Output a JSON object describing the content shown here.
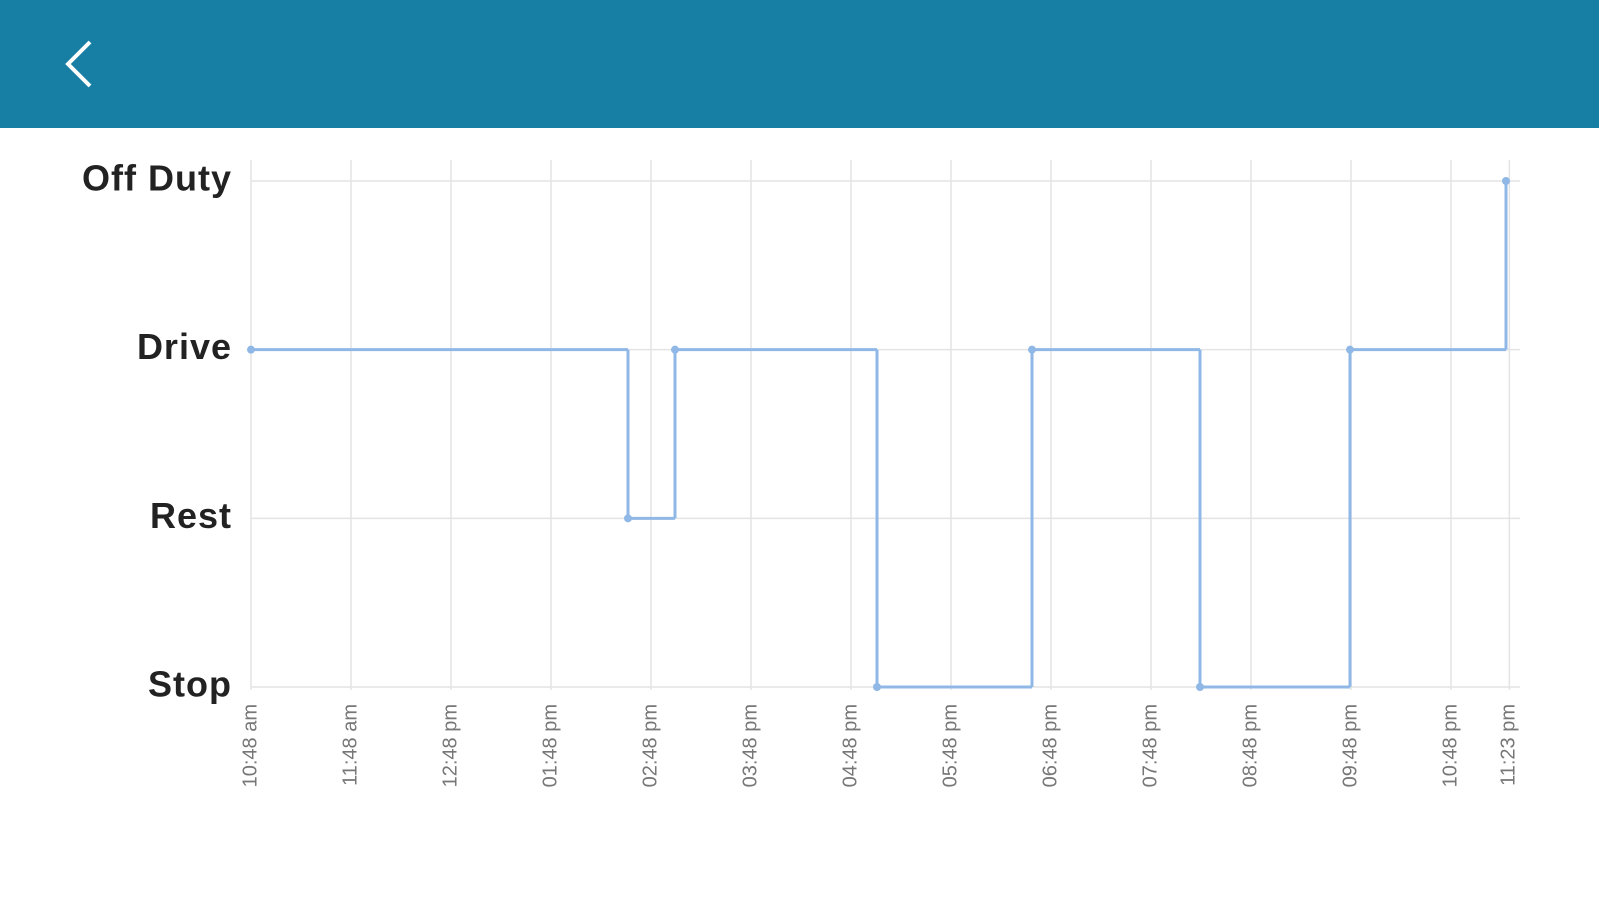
{
  "chart_data": {
    "type": "step",
    "x": [
      10.8,
      14.57,
      15.04,
      17.06,
      18.61,
      20.29,
      21.79,
      23.35
    ],
    "values": [
      2,
      1,
      2,
      0,
      2,
      0,
      2,
      3
    ],
    "color": "#8fb8e6",
    "xlim": [
      10.8,
      23.49
    ],
    "xticks": [
      {
        "value": 10.8,
        "label": "10:48 am"
      },
      {
        "value": 11.8,
        "label": "11:48 am"
      },
      {
        "value": 12.8,
        "label": "12:48 pm"
      },
      {
        "value": 13.8,
        "label": "01:48 pm"
      },
      {
        "value": 14.8,
        "label": "02:48 pm"
      },
      {
        "value": 15.8,
        "label": "03:48 pm"
      },
      {
        "value": 16.8,
        "label": "04:48 pm"
      },
      {
        "value": 17.8,
        "label": "05:48 pm"
      },
      {
        "value": 18.8,
        "label": "06:48 pm"
      },
      {
        "value": 19.8,
        "label": "07:48 pm"
      },
      {
        "value": 20.8,
        "label": "08:48 pm"
      },
      {
        "value": 21.8,
        "label": "09:48 pm"
      },
      {
        "value": 22.8,
        "label": "10:48 pm"
      },
      {
        "value": 23.3833,
        "label": "11:23 pm"
      }
    ],
    "ylim": [
      0,
      3
    ],
    "yticks": [
      {
        "value": 0,
        "label": "Stop"
      },
      {
        "value": 1,
        "label": "Rest"
      },
      {
        "value": 2,
        "label": "Drive"
      },
      {
        "value": 3,
        "label": "Off Duty"
      }
    ],
    "grid": true
  }
}
